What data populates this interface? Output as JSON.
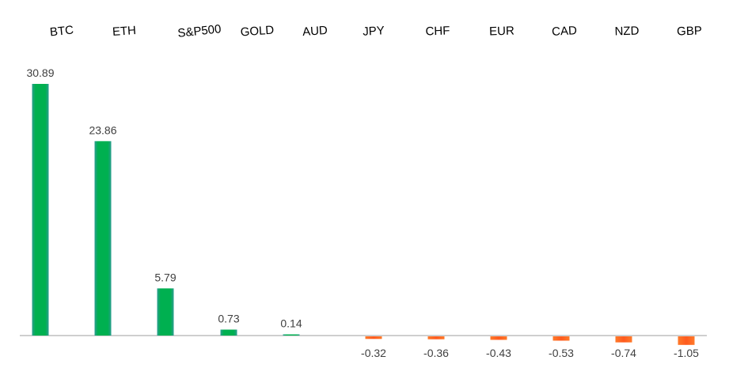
{
  "chart_data": {
    "type": "bar",
    "title": "",
    "xlabel": "",
    "ylabel": "",
    "categories": [
      "BTC",
      "ETH",
      "S&P500",
      "GOLD",
      "AUD",
      "JPY",
      "CHF",
      "EUR",
      "CAD",
      "NZD",
      "GBP"
    ],
    "values": [
      30.89,
      23.86,
      5.79,
      0.73,
      0.14,
      -0.32,
      -0.36,
      -0.43,
      -0.53,
      -0.74,
      -1.05
    ],
    "value_labels": [
      "30.89",
      "23.86",
      "5.79",
      "0.73",
      "0.14",
      "-0.32",
      "-0.36",
      "-0.43",
      "-0.53",
      "-0.74",
      "-1.05"
    ],
    "ylim": [
      -1.05,
      30.89
    ],
    "grid": false,
    "legend": "none",
    "colors": {
      "positive": "#00b050",
      "negative": "#ff5a1e",
      "axis": "#bfbfbf"
    }
  }
}
